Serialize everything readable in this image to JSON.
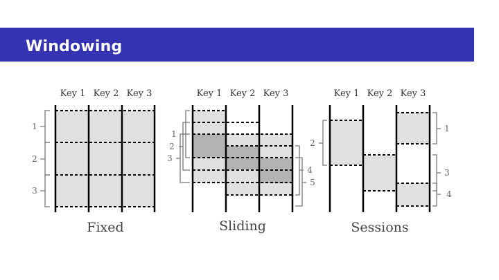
{
  "slide": {
    "title": "Windowing",
    "colors": {
      "title_bar": "#3333b3",
      "window_fill": "#e0e0e0",
      "overlap_fill": "#b3b3b3",
      "key_line": "#000000",
      "bracket": "#777777"
    }
  },
  "diagram": {
    "panels": {
      "fixed": {
        "caption": "Fixed",
        "keys": [
          "Key 1",
          "Key 2",
          "Key 3"
        ],
        "windows": [
          "1",
          "2",
          "3"
        ]
      },
      "sliding": {
        "caption": "Sliding",
        "keys": [
          "Key 1",
          "Key 2",
          "Key 3"
        ],
        "windows": [
          "1",
          "2",
          "3",
          "4",
          "5"
        ]
      },
      "sessions": {
        "caption": "Sessions",
        "keys": [
          "Key 1",
          "Key 2",
          "Key 3"
        ],
        "windows": [
          "1",
          "2",
          "3",
          "4"
        ]
      }
    }
  }
}
